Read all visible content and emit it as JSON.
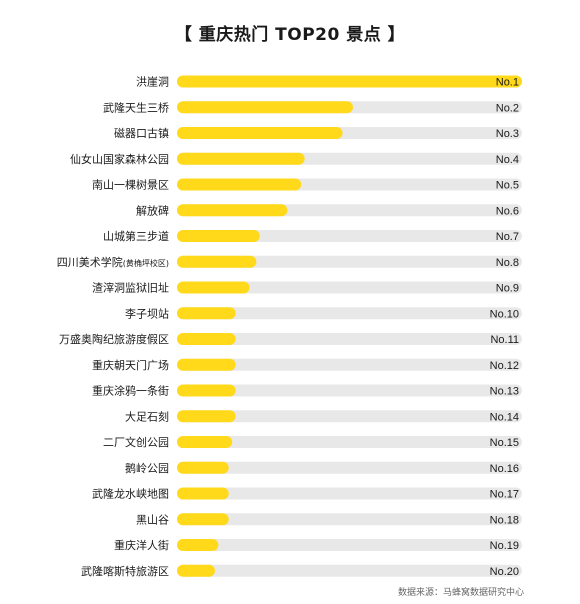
{
  "chart_data": {
    "type": "bar",
    "orientation": "horizontal",
    "title": "【 重庆热门 TOP20 景点 】",
    "source": "数据来源：马蜂窝数据研究中心",
    "bar_color": "#FFD91A",
    "track_color": "#E8E8E8",
    "xlim": [
      0,
      100
    ],
    "categories": [
      "洪崖洞",
      "武隆天生三桥",
      "磁器口古镇",
      "仙女山国家森林公园",
      "南山一棵树景区",
      "解放碑",
      "山城第三步道",
      "四川美术学院(黄桷坪校区)",
      "渣滓洞监狱旧址",
      "李子坝站",
      "万盛奥陶纪旅游度假区",
      "重庆朝天门广场",
      "重庆涂鸦一条街",
      "大足石刻",
      "二厂文创公园",
      "鹅岭公园",
      "武隆龙水峡地图",
      "黑山谷",
      "重庆洋人街",
      "武隆喀斯特旅游区"
    ],
    "ranks": [
      "No.1",
      "No.2",
      "No.3",
      "No.4",
      "No.5",
      "No.6",
      "No.7",
      "No.8",
      "No.9",
      "No.10",
      "No.11",
      "No.12",
      "No.13",
      "No.14",
      "No.15",
      "No.16",
      "No.17",
      "No.18",
      "No.19",
      "No.20"
    ],
    "values": [
      100,
      51,
      48,
      37,
      36,
      32,
      24,
      23,
      21,
      17,
      17,
      17,
      17,
      17,
      16,
      15,
      15,
      15,
      12,
      11
    ]
  }
}
